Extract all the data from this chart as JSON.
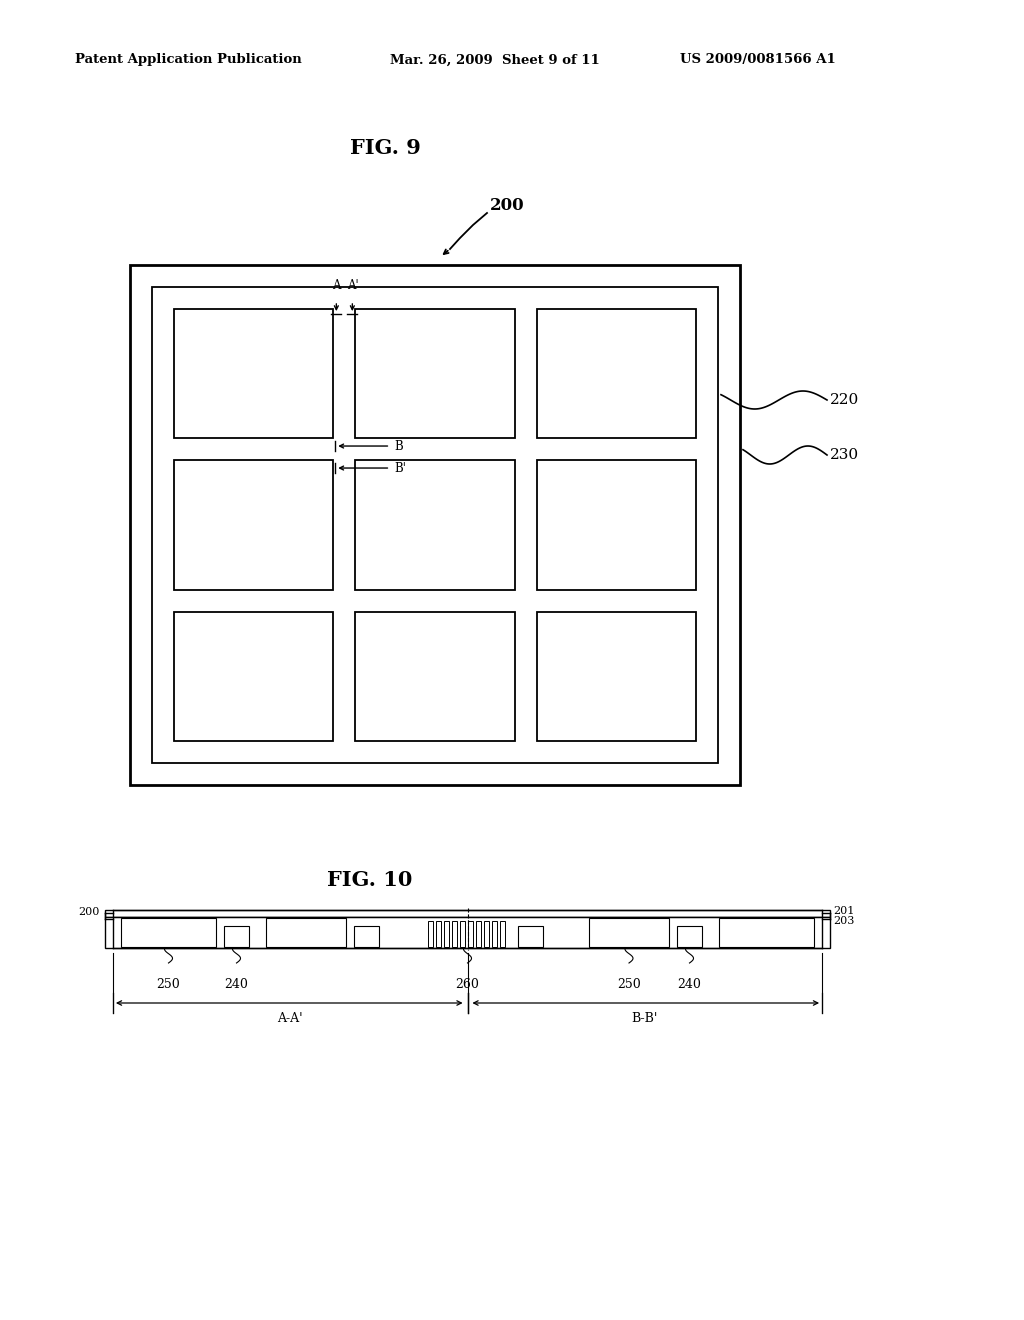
{
  "bg_color": "#ffffff",
  "header_left": "Patent Application Publication",
  "header_mid": "Mar. 26, 2009  Sheet 9 of 11",
  "header_right": "US 2009/0081566 A1",
  "fig9_title": "FIG. 9",
  "fig10_title": "FIG. 10",
  "label_200": "200",
  "label_220": "220",
  "label_230": "230",
  "label_200b": "200",
  "label_201": "201",
  "label_203": "203",
  "label_250a": "250",
  "label_240a": "240",
  "label_260": "260",
  "label_250b": "250",
  "label_240b": "240",
  "label_AA": "A-A'",
  "label_BB": "B-B'"
}
